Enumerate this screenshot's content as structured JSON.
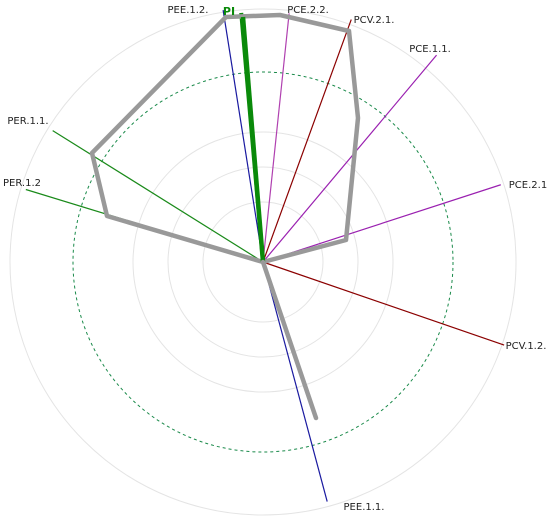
{
  "chart_data": {
    "type": "radar",
    "rings": 4,
    "dashed_ring": 3,
    "max_ring": 6,
    "axes": [
      {
        "label": "PI",
        "angle_deg": 95,
        "color": "#0a8a0a",
        "bold": true
      },
      {
        "label": "PEE.1.2.",
        "angle_deg": 99,
        "color": "#1a1aa0"
      },
      {
        "label": "PCE.2.2.",
        "angle_deg": 84,
        "color": "#b040b0"
      },
      {
        "label": "PCV.2.1.",
        "angle_deg": 70,
        "color": "#8b0000"
      },
      {
        "label": "PCE.1.1.",
        "angle_deg": 50,
        "color": "#9a20b0"
      },
      {
        "label": "PCE.2.1",
        "angle_deg": 18,
        "color": "#9a20b0"
      },
      {
        "label": "PCV.1.2.",
        "angle_deg": -19,
        "color": "#8b0000"
      },
      {
        "label": "PEE.1.1.",
        "angle_deg": -75,
        "color": "#1a1aa0"
      },
      {
        "label": "PER.1.2",
        "angle_deg": 163,
        "color": "#1a8a1a"
      },
      {
        "label": "PER.1.1.",
        "angle_deg": 148,
        "color": "#1a8a1a"
      }
    ],
    "profile": {
      "color": "#999999",
      "vertices": [
        {
          "axis": "PEE.1.2.",
          "value": 6.0
        },
        {
          "axis": "PCE.2.2.",
          "value": 5.8
        },
        {
          "axis": "PCV.2.1.",
          "value": 5.7
        },
        {
          "axis": "PCE.1.1.",
          "value": 3.9
        },
        {
          "axis": "PCE.2.1",
          "value": 2.1
        },
        {
          "axis": "PER.1.2",
          "value": 3.7
        },
        {
          "axis": "PER.1.1.",
          "value": 4.2
        }
      ],
      "pi_value": 6.0,
      "pee11_value": 3.8
    }
  }
}
